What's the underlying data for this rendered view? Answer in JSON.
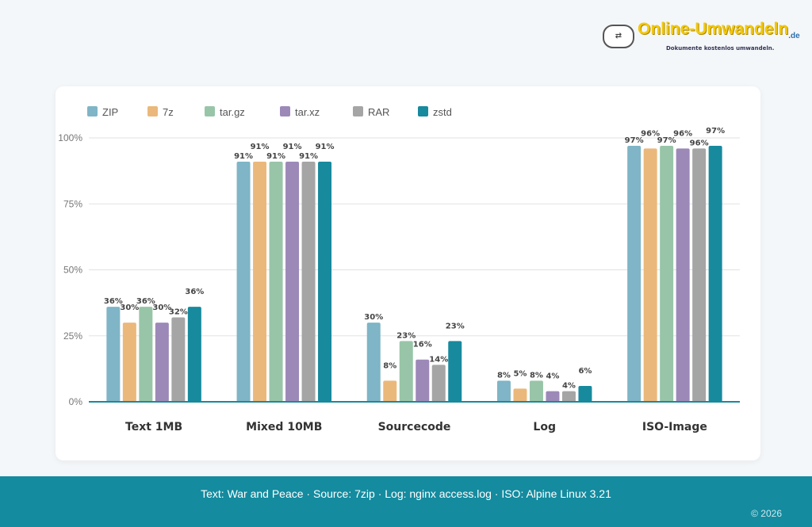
{
  "logo": {
    "name": "Online-Umwandeln",
    "tld": ".de",
    "tagline": "Dokumente kostenlos umwandeln."
  },
  "chart_data": {
    "type": "bar",
    "categories": [
      "Text 1MB",
      "Mixed 10MB",
      "Sourcecode",
      "Log",
      "ISO-Image"
    ],
    "series": [
      {
        "name": "ZIP",
        "color": "#7fb5c6",
        "values": [
          36,
          91,
          30,
          8,
          97
        ]
      },
      {
        "name": "7z",
        "color": "#ebb87b",
        "values": [
          30,
          91,
          8,
          5,
          96
        ]
      },
      {
        "name": "tar.gz",
        "color": "#98c5a8",
        "values": [
          36,
          91,
          23,
          8,
          97
        ]
      },
      {
        "name": "tar.xz",
        "color": "#9c89b8",
        "values": [
          30,
          91,
          16,
          4,
          96
        ]
      },
      {
        "name": "RAR",
        "color": "#a5a5a5",
        "values": [
          32,
          91,
          14,
          4,
          96
        ]
      },
      {
        "name": "zstd",
        "color": "#178a9e",
        "values": [
          36,
          91,
          23,
          6,
          97
        ]
      }
    ],
    "yticks": [
      "0%",
      "25%",
      "50%",
      "75%",
      "100%"
    ],
    "ylim": [
      0,
      100
    ],
    "value_suffix": "%",
    "grid": true,
    "legend": "top-left"
  },
  "footer": {
    "note": "Text: War and Peace · Source: 7zip · Log: nginx access.log · ISO: Alpine Linux 3.21",
    "copyright": "© 2026"
  }
}
